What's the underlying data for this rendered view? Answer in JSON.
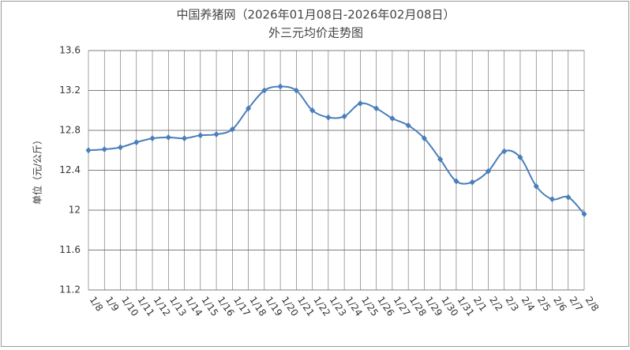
{
  "chart_data": {
    "type": "line",
    "title": "中国养猪网（2026年01月08日-2026年02月08日）",
    "subtitle": "外三元均价走势图",
    "y_label": "单位（元/公斤）",
    "categories": [
      "1/8",
      "1/9",
      "1/10",
      "1/11",
      "1/12",
      "1/13",
      "1/14",
      "1/15",
      "1/16",
      "1/17",
      "1/18",
      "1/19",
      "1/20",
      "1/21",
      "1/22",
      "1/23",
      "1/24",
      "1/25",
      "1/26",
      "1/27",
      "1/28",
      "1/29",
      "1/30",
      "1/31",
      "2/1",
      "2/2",
      "2/3",
      "2/4",
      "2/5",
      "2/6",
      "2/7",
      "2/8"
    ],
    "values": [
      12.6,
      12.61,
      12.63,
      12.68,
      12.72,
      12.73,
      12.72,
      12.75,
      12.76,
      12.81,
      13.02,
      13.2,
      13.24,
      13.2,
      13.0,
      12.93,
      12.94,
      13.07,
      13.02,
      12.92,
      12.85,
      12.72,
      12.51,
      12.29,
      12.28,
      12.39,
      12.59,
      12.53,
      12.24,
      12.11,
      12.13,
      11.96
    ],
    "color": "#4a7ebb",
    "ylim": [
      11.2,
      13.6
    ],
    "yticks": [
      11.2,
      11.6,
      12,
      12.4,
      12.8,
      13.2,
      13.6
    ],
    "grid": true
  }
}
